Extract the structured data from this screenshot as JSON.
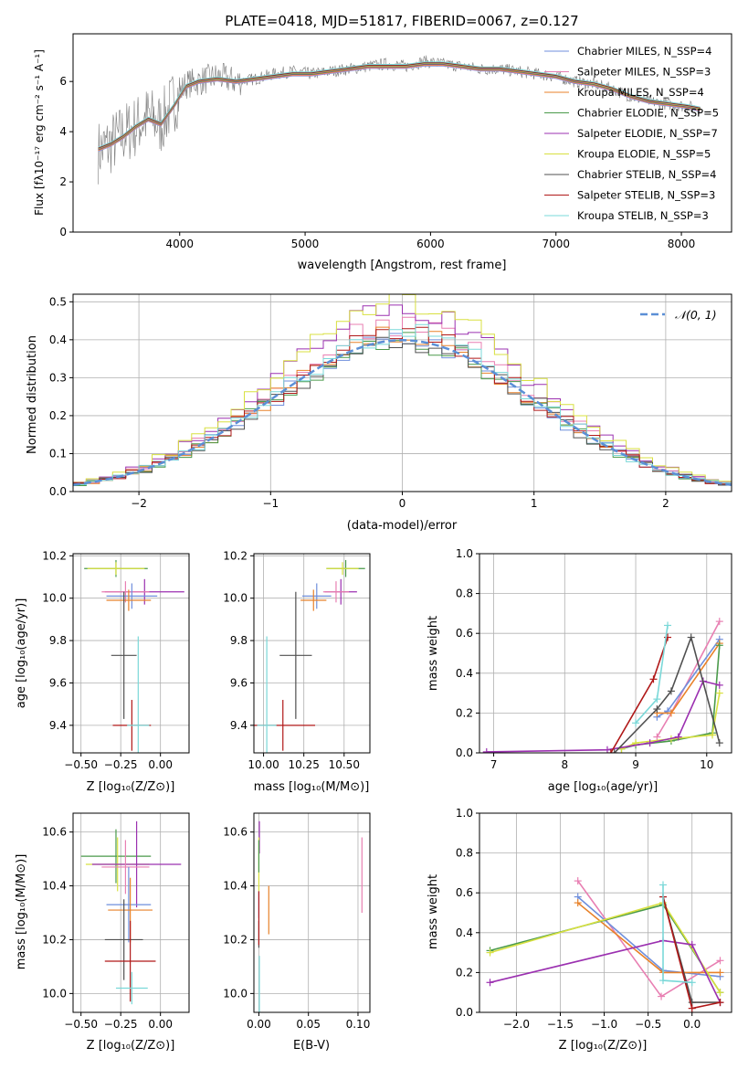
{
  "chart_data": [
    {
      "id": "spectrum",
      "type": "line",
      "title": "PLATE=0418, MJD=51817, FIBERID=0067, z=0.127",
      "xlabel": "wavelength [Angstrom, rest frame]",
      "ylabel": "Flux [fλ10⁻¹⁷ erg cm⁻² s⁻¹ A⁻¹]",
      "xlim": [
        3150,
        8400
      ],
      "ylim": [
        0,
        7.9
      ],
      "xticks": [
        4000,
        5000,
        6000,
        7000,
        8000
      ],
      "yticks": [
        0,
        2,
        4,
        6
      ],
      "grid": false,
      "legend_position": "upper-right",
      "observed": {
        "name": "data",
        "x": [
          3350,
          3450,
          3550,
          3650,
          3750,
          3850,
          3950,
          4050,
          4150,
          4300,
          4450,
          4600,
          4750,
          4900,
          5050,
          5200,
          5350,
          5500,
          5650,
          5800,
          5950,
          6100,
          6250,
          6400,
          6550,
          6700,
          6850,
          7000,
          7150,
          7300,
          7450,
          7600,
          7750,
          7900,
          8050,
          8150
        ],
        "y": [
          3.2,
          3.5,
          3.9,
          4.2,
          4.6,
          4.3,
          5.2,
          5.9,
          6.0,
          6.2,
          6.0,
          6.1,
          6.3,
          6.4,
          6.3,
          6.4,
          6.5,
          6.6,
          6.7,
          6.6,
          6.8,
          6.7,
          6.6,
          6.5,
          6.5,
          6.4,
          6.3,
          6.2,
          6.0,
          5.9,
          5.7,
          5.4,
          5.2,
          5.1,
          5.0,
          4.9
        ]
      },
      "series": [
        {
          "name": "Chabrier MILES, N_SSP=4",
          "color": "#6f8fdc"
        },
        {
          "name": "Salpeter MILES, N_SSP=3",
          "color": "#e87fb2"
        },
        {
          "name": "Kroupa MILES, N_SSP=4",
          "color": "#e8822a"
        },
        {
          "name": "Chabrier ELODIE, N_SSP=5",
          "color": "#4a9a4a"
        },
        {
          "name": "Salpeter ELODIE, N_SSP=7",
          "color": "#9b30b0"
        },
        {
          "name": "Kroupa ELODIE, N_SSP=5",
          "color": "#d8e040"
        },
        {
          "name": "Chabrier STELIB, N_SSP=4",
          "color": "#505050"
        },
        {
          "name": "Salpeter STELIB, N_SSP=3",
          "color": "#b01818"
        },
        {
          "name": "Kroupa STELIB, N_SSP=3",
          "color": "#7ad8d8"
        }
      ],
      "model_curve": {
        "x": [
          3350,
          3450,
          3550,
          3650,
          3750,
          3850,
          3950,
          4050,
          4150,
          4300,
          4450,
          4600,
          4750,
          4900,
          5050,
          5200,
          5350,
          5500,
          5650,
          5800,
          5950,
          6100,
          6250,
          6400,
          6550,
          6700,
          6850,
          7000,
          7150,
          7300,
          7450,
          7600,
          7750,
          7900,
          8050,
          8150
        ],
        "y": [
          3.3,
          3.5,
          3.8,
          4.2,
          4.5,
          4.3,
          5.0,
          5.8,
          6.0,
          6.1,
          6.0,
          6.1,
          6.2,
          6.3,
          6.3,
          6.4,
          6.5,
          6.6,
          6.6,
          6.6,
          6.7,
          6.7,
          6.6,
          6.5,
          6.5,
          6.4,
          6.3,
          6.2,
          6.0,
          5.9,
          5.7,
          5.4,
          5.2,
          5.1,
          5.0,
          4.9
        ]
      }
    },
    {
      "id": "residuals",
      "type": "line",
      "xlabel": "(data-model)/error",
      "ylabel": "Normed distribution",
      "xlim": [
        -2.5,
        2.5
      ],
      "ylim": [
        0,
        0.52
      ],
      "xticks": [
        -2,
        -1,
        0,
        1,
        2
      ],
      "yticks": [
        0.0,
        0.1,
        0.2,
        0.3,
        0.4,
        0.5
      ],
      "grid": true,
      "legend_position": "upper-right",
      "reference": {
        "name": "𝒩(0, 1)",
        "type": "gaussian",
        "mean": 0,
        "sigma": 1,
        "color": "#5b8fd6"
      },
      "histogram_bin_width": 0.1,
      "histograms": [
        {
          "color": "#6f8fdc",
          "peak": 0.4
        },
        {
          "color": "#e87fb2",
          "peak": 0.44
        },
        {
          "color": "#e8822a",
          "peak": 0.41
        },
        {
          "color": "#4a9a4a",
          "peak": 0.4
        },
        {
          "color": "#9b30b0",
          "peak": 0.48
        },
        {
          "color": "#d8e040",
          "peak": 0.5
        },
        {
          "color": "#505050",
          "peak": 0.4
        },
        {
          "color": "#b01818",
          "peak": 0.41
        },
        {
          "color": "#7ad8d8",
          "peak": 0.42
        }
      ]
    },
    {
      "id": "age-vs-Z",
      "type": "scatter",
      "xlabel": "Z [log₁₀(Z/Z⊙)]",
      "ylabel": "age  [log₁₀(age/yr)]",
      "xlim": [
        -0.55,
        0.18
      ],
      "ylim": [
        9.27,
        10.21
      ],
      "xticks": [
        -0.5,
        -0.25,
        0.0
      ],
      "yticks": [
        9.4,
        9.6,
        9.8,
        10.0,
        10.2
      ],
      "grid": true,
      "points": [
        {
          "color": "#4a9a4a",
          "x": -0.28,
          "y": 10.14,
          "xerr": 0.2,
          "yerr": 0.04
        },
        {
          "color": "#d8e040",
          "x": -0.28,
          "y": 10.14,
          "xerr": 0.18,
          "yerr": 0.03
        },
        {
          "color": "#9b30b0",
          "x": -0.1,
          "y": 10.03,
          "xerr": 0.25,
          "yerr": 0.06
        },
        {
          "color": "#e87fb2",
          "x": -0.22,
          "y": 10.03,
          "xerr": 0.15,
          "yerr": 0.05
        },
        {
          "color": "#6f8fdc",
          "x": -0.18,
          "y": 10.01,
          "xerr": 0.16,
          "yerr": 0.06
        },
        {
          "color": "#e8822a",
          "x": -0.2,
          "y": 9.99,
          "xerr": 0.14,
          "yerr": 0.05
        },
        {
          "color": "#505050",
          "x": -0.23,
          "y": 9.73,
          "xerr": 0.08,
          "yerr": 0.3
        },
        {
          "color": "#b01818",
          "x": -0.18,
          "y": 9.4,
          "xerr": 0.12,
          "yerr": 0.12
        },
        {
          "color": "#7ad8d8",
          "x": -0.14,
          "y": 9.4,
          "xerr": 0.07,
          "yerr": 0.42
        }
      ]
    },
    {
      "id": "age-vs-mass",
      "type": "scatter",
      "xlabel": "mass [log₁₀(M/M⊙)]",
      "xlim": [
        9.94,
        10.66
      ],
      "ylim": [
        9.27,
        10.21
      ],
      "xticks": [
        10.0,
        10.25,
        10.5
      ],
      "yticks": [
        9.4,
        9.6,
        9.8,
        10.0,
        10.2
      ],
      "grid": true,
      "points": [
        {
          "color": "#4a9a4a",
          "x": 10.51,
          "y": 10.14,
          "xerr": 0.12,
          "yerr": 0.04
        },
        {
          "color": "#d8e040",
          "x": 10.49,
          "y": 10.14,
          "xerr": 0.1,
          "yerr": 0.03
        },
        {
          "color": "#9b30b0",
          "x": 10.48,
          "y": 10.03,
          "xerr": 0.1,
          "yerr": 0.06
        },
        {
          "color": "#e87fb2",
          "x": 10.45,
          "y": 10.03,
          "xerr": 0.08,
          "yerr": 0.05
        },
        {
          "color": "#6f8fdc",
          "x": 10.33,
          "y": 10.01,
          "xerr": 0.09,
          "yerr": 0.06
        },
        {
          "color": "#e8822a",
          "x": 10.31,
          "y": 9.99,
          "xerr": 0.08,
          "yerr": 0.05
        },
        {
          "color": "#505050",
          "x": 10.2,
          "y": 9.73,
          "xerr": 0.1,
          "yerr": 0.3
        },
        {
          "color": "#b01818",
          "x": 10.12,
          "y": 9.4,
          "xerr": 0.2,
          "yerr": 0.12
        },
        {
          "color": "#7ad8d8",
          "x": 10.02,
          "y": 9.4,
          "xerr": 0.06,
          "yerr": 0.42
        }
      ]
    },
    {
      "id": "massweight-vs-age",
      "type": "line",
      "xlabel": "age  [log₁₀(age/yr)]",
      "ylabel": "mass weight",
      "xlim": [
        6.8,
        10.35
      ],
      "ylim": [
        0,
        1.0
      ],
      "xticks": [
        7,
        8,
        9,
        10
      ],
      "yticks": [
        0.0,
        0.2,
        0.4,
        0.6,
        0.8,
        1.0
      ],
      "grid": true,
      "series": [
        {
          "color": "#e87fb2",
          "x": [
            9.3,
            9.5,
            10.18
          ],
          "y": [
            0.08,
            0.2,
            0.66
          ]
        },
        {
          "color": "#6f8fdc",
          "x": [
            9.3,
            9.45,
            10.18
          ],
          "y": [
            0.18,
            0.21,
            0.57
          ]
        },
        {
          "color": "#e8822a",
          "x": [
            9.3,
            9.5,
            10.18
          ],
          "y": [
            0.2,
            0.2,
            0.55
          ]
        },
        {
          "color": "#4a9a4a",
          "x": [
            8.8,
            9.0,
            9.5,
            10.08,
            10.18
          ],
          "y": [
            0.02,
            0.04,
            0.06,
            0.1,
            0.54
          ]
        },
        {
          "color": "#d8e040",
          "x": [
            8.8,
            9.0,
            9.5,
            10.08,
            10.18
          ],
          "y": [
            0.02,
            0.05,
            0.07,
            0.09,
            0.3
          ]
        },
        {
          "color": "#9b30b0",
          "x": [
            6.9,
            8.6,
            9.2,
            9.6,
            9.95,
            10.18
          ],
          "y": [
            0.005,
            0.015,
            0.05,
            0.08,
            0.36,
            0.34
          ]
        },
        {
          "color": "#505050",
          "x": [
            8.7,
            9.3,
            9.5,
            9.78,
            10.18
          ],
          "y": [
            0.0,
            0.22,
            0.31,
            0.58,
            0.05
          ]
        },
        {
          "color": "#b01818",
          "x": [
            8.65,
            9.25,
            9.45
          ],
          "y": [
            0.0,
            0.37,
            0.58
          ]
        },
        {
          "color": "#7ad8d8",
          "x": [
            9.0,
            9.3,
            9.45
          ],
          "y": [
            0.15,
            0.27,
            0.64
          ]
        }
      ]
    },
    {
      "id": "mass-vs-Z",
      "type": "scatter",
      "xlabel": "Z [log₁₀(Z/Z⊙)]",
      "ylabel": "mass [log₁₀(M/M⊙)]",
      "xlim": [
        -0.55,
        0.18
      ],
      "ylim": [
        9.93,
        10.67
      ],
      "xticks": [
        -0.5,
        -0.25,
        0.0
      ],
      "yticks": [
        10.0,
        10.2,
        10.4,
        10.6
      ],
      "grid": true,
      "points": [
        {
          "color": "#4a9a4a",
          "x": -0.28,
          "y": 10.51,
          "xerr": 0.22,
          "yerr": 0.1
        },
        {
          "color": "#d8e040",
          "x": -0.27,
          "y": 10.48,
          "xerr": 0.2,
          "yerr": 0.1
        },
        {
          "color": "#9b30b0",
          "x": -0.15,
          "y": 10.48,
          "xerr": 0.28,
          "yerr": 0.16
        },
        {
          "color": "#e87fb2",
          "x": -0.22,
          "y": 10.47,
          "xerr": 0.15,
          "yerr": 0.1
        },
        {
          "color": "#6f8fdc",
          "x": -0.2,
          "y": 10.33,
          "xerr": 0.14,
          "yerr": 0.14
        },
        {
          "color": "#e8822a",
          "x": -0.19,
          "y": 10.31,
          "xerr": 0.14,
          "yerr": 0.12
        },
        {
          "color": "#505050",
          "x": -0.23,
          "y": 10.2,
          "xerr": 0.12,
          "yerr": 0.15
        },
        {
          "color": "#b01818",
          "x": -0.19,
          "y": 10.12,
          "xerr": 0.16,
          "yerr": 0.15
        },
        {
          "color": "#7ad8d8",
          "x": -0.18,
          "y": 10.02,
          "xerr": 0.1,
          "yerr": 0.06
        }
      ]
    },
    {
      "id": "mass-vs-ebv",
      "type": "scatter",
      "xlabel": "E(B-V)",
      "xlim": [
        -0.005,
        0.112
      ],
      "ylim": [
        9.93,
        10.67
      ],
      "xticks": [
        0.0,
        0.05,
        0.1
      ],
      "yticks": [
        10.0,
        10.2,
        10.4,
        10.6
      ],
      "grid": true,
      "points": [
        {
          "color": "#9b30b0",
          "x": 0.0005,
          "y": 10.58,
          "xerr": 0.0,
          "yerr": 0.06
        },
        {
          "color": "#d8e040",
          "x": 0.0,
          "y": 10.48,
          "xerr": 0.0,
          "yerr": 0.1
        },
        {
          "color": "#e87fb2",
          "x": 0.104,
          "y": 10.44,
          "xerr": 0.0,
          "yerr": 0.14
        },
        {
          "color": "#e8822a",
          "x": 0.01,
          "y": 10.31,
          "xerr": 0.0,
          "yerr": 0.09
        },
        {
          "color": "#6f8fdc",
          "x": 0.0,
          "y": 10.33,
          "xerr": 0.0,
          "yerr": 0.05
        },
        {
          "color": "#505050",
          "x": 0.0,
          "y": 10.22,
          "xerr": 0.0,
          "yerr": 0.05
        },
        {
          "color": "#b01818",
          "x": 0.0,
          "y": 10.28,
          "xerr": 0.0,
          "yerr": 0.1
        },
        {
          "color": "#7ad8d8",
          "x": 0.0005,
          "y": 10.02,
          "xerr": 0.0,
          "yerr": 0.12
        },
        {
          "color": "#4a9a4a",
          "x": 0.0,
          "y": 10.51,
          "xerr": 0.0,
          "yerr": 0.06
        }
      ]
    },
    {
      "id": "massweight-vs-Z",
      "type": "line",
      "xlabel": "Z [log₁₀(Z/Z⊙)]",
      "ylabel": "mass weight",
      "xlim": [
        -2.42,
        0.45
      ],
      "ylim": [
        0,
        1.0
      ],
      "xticks": [
        -2.0,
        -1.5,
        -1.0,
        -0.5,
        0.0
      ],
      "yticks": [
        0.0,
        0.2,
        0.4,
        0.6,
        0.8,
        1.0
      ],
      "grid": true,
      "series": [
        {
          "color": "#e87fb2",
          "x": [
            -1.3,
            -0.35,
            0.32
          ],
          "y": [
            0.66,
            0.08,
            0.26
          ]
        },
        {
          "color": "#6f8fdc",
          "x": [
            -1.3,
            -0.33,
            0.32
          ],
          "y": [
            0.58,
            0.21,
            0.18
          ]
        },
        {
          "color": "#e8822a",
          "x": [
            -1.3,
            -0.33,
            0.32
          ],
          "y": [
            0.55,
            0.2,
            0.2
          ]
        },
        {
          "color": "#4a9a4a",
          "x": [
            -2.3,
            -0.33,
            0.32
          ],
          "y": [
            0.31,
            0.54,
            0.1
          ]
        },
        {
          "color": "#d8e040",
          "x": [
            -2.3,
            -0.33,
            0.32
          ],
          "y": [
            0.3,
            0.55,
            0.1
          ]
        },
        {
          "color": "#9b30b0",
          "x": [
            -2.3,
            -0.33,
            0.0,
            0.32
          ],
          "y": [
            0.15,
            0.36,
            0.34,
            0.05
          ]
        },
        {
          "color": "#505050",
          "x": [
            -0.33,
            0.0,
            0.32
          ],
          "y": [
            0.58,
            0.05,
            0.05
          ]
        },
        {
          "color": "#b01818",
          "x": [
            -0.33,
            0.0,
            0.32
          ],
          "y": [
            0.58,
            0.02,
            0.05
          ]
        },
        {
          "color": "#7ad8d8",
          "x": [
            -0.33,
            -0.33,
            0.0
          ],
          "y": [
            0.64,
            0.16,
            0.15
          ]
        }
      ]
    }
  ]
}
